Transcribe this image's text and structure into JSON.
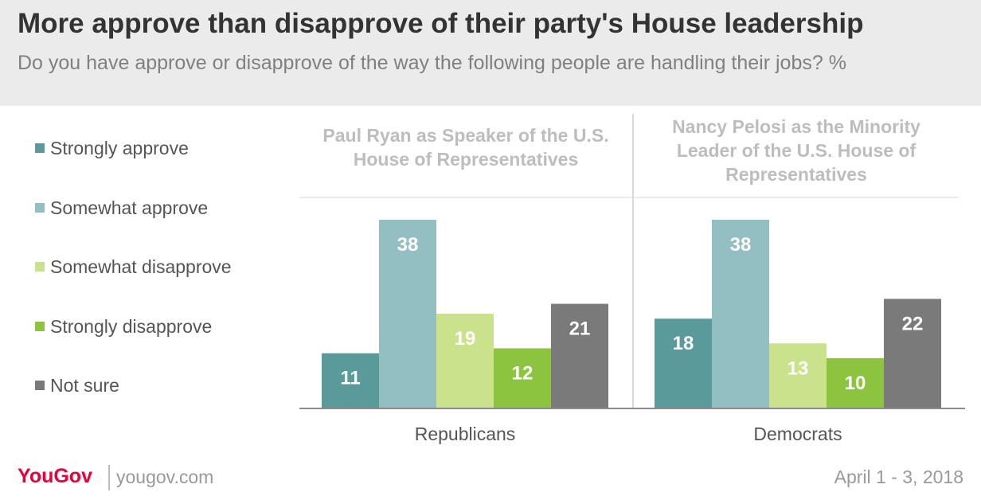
{
  "title": "More approve than disapprove of their party's House leadership",
  "subtitle": "Do you have approve or disapprove of the way the following people are handling their jobs? %",
  "legend": [
    {
      "label": "Strongly approve",
      "color": "#5b9a9a"
    },
    {
      "label": "Somewhat approve",
      "color": "#94bfc2"
    },
    {
      "label": "Somewhat disapprove",
      "color": "#cbe28c"
    },
    {
      "label": "Strongly disapprove",
      "color": "#8cc43f"
    },
    {
      "label": "Not sure",
      "color": "#7a7a7a"
    }
  ],
  "footer": {
    "logo": "YouGov",
    "url": "yougov.com",
    "date": "April 1 - 3, 2018"
  },
  "chart_data": {
    "type": "bar",
    "title": "More approve than disapprove of their party's House leadership",
    "ylim": [
      0,
      40
    ],
    "grid": false,
    "legend_position": "left",
    "panels": [
      {
        "title": "Paul Ryan as Speaker of the U.S. House of Representatives",
        "category": "Republicans",
        "series": [
          {
            "name": "Strongly approve",
            "value": 11
          },
          {
            "name": "Somewhat approve",
            "value": 38
          },
          {
            "name": "Somewhat disapprove",
            "value": 19
          },
          {
            "name": "Strongly disapprove",
            "value": 12
          },
          {
            "name": "Not sure",
            "value": 21
          }
        ]
      },
      {
        "title": "Nancy Pelosi as the Minority Leader of the U.S. House of Representatives",
        "category": "Democrats",
        "series": [
          {
            "name": "Strongly approve",
            "value": 18
          },
          {
            "name": "Somewhat approve",
            "value": 38
          },
          {
            "name": "Somewhat disapprove",
            "value": 13
          },
          {
            "name": "Strongly disapprove",
            "value": 10
          },
          {
            "name": "Not sure",
            "value": 22
          }
        ]
      }
    ]
  }
}
